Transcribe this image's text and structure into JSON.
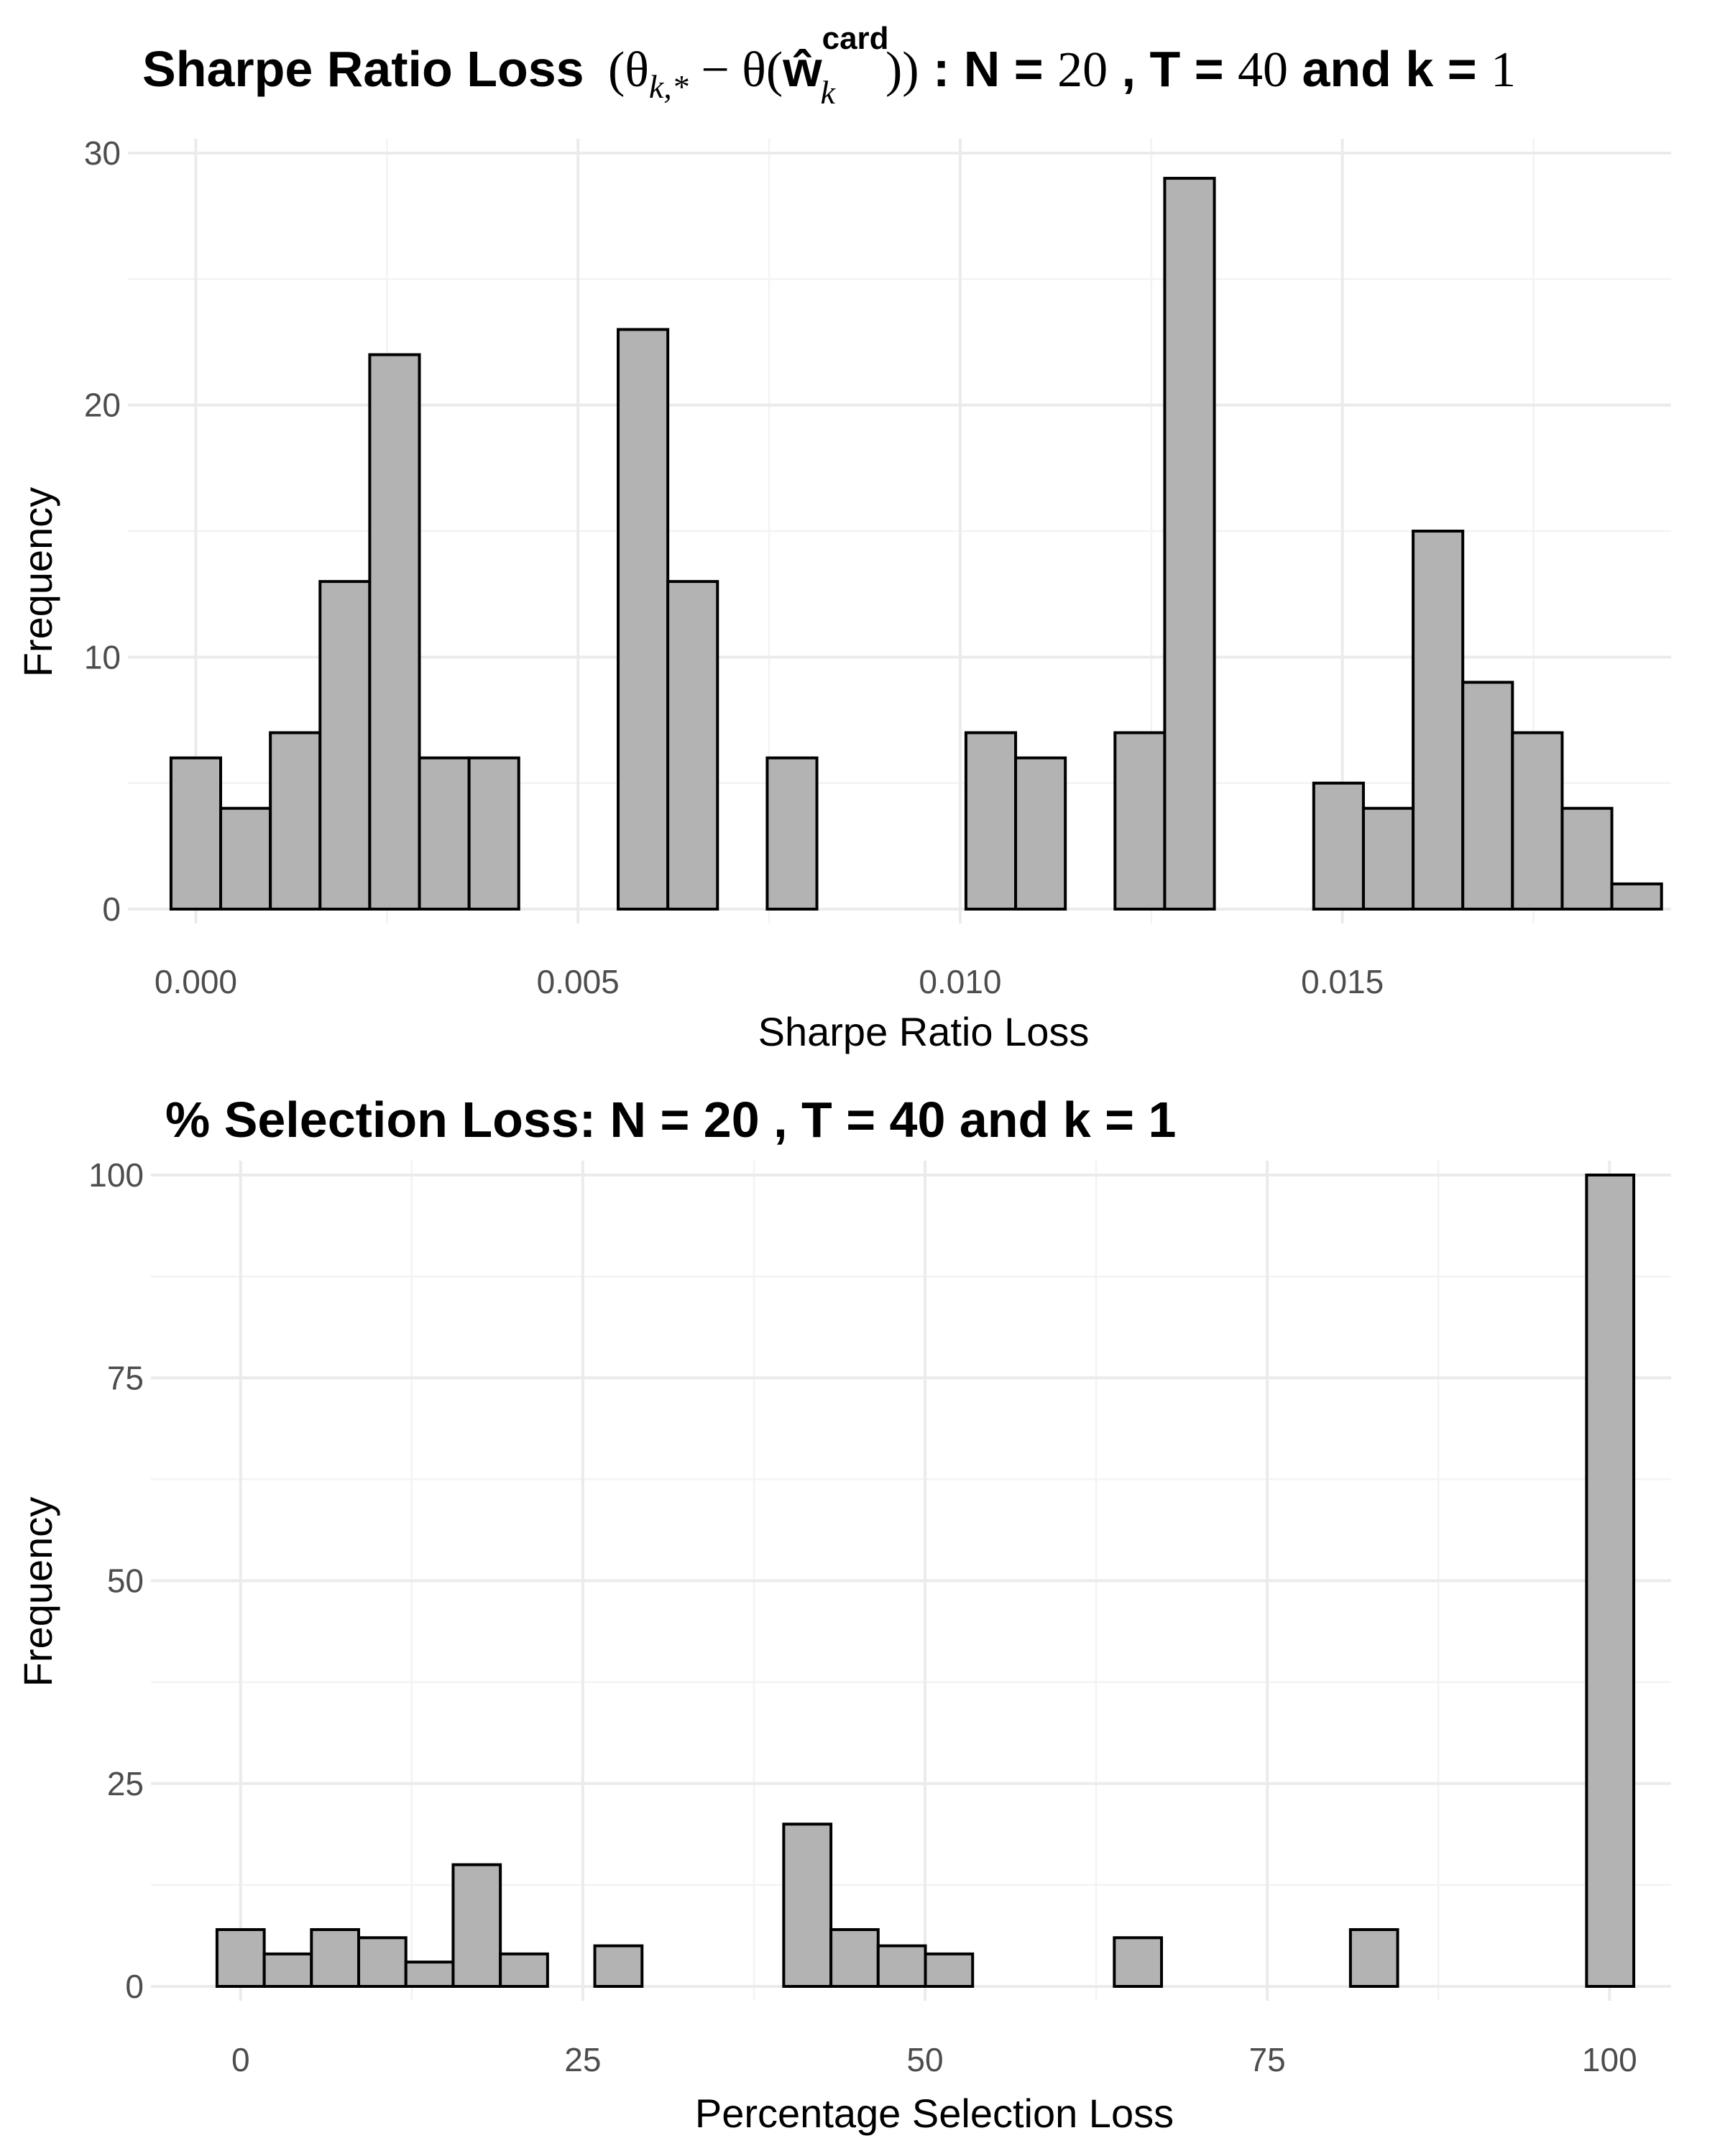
{
  "chart_data": [
    {
      "type": "bar",
      "title": {
        "prefix": "Sharpe Ratio Loss",
        "formula_open": "(θ",
        "formula_sub1": "k,*",
        "formula_mid": " − θ(",
        "formula_w": "ŵ",
        "formula_sup": "card",
        "formula_sub2": "k",
        "formula_close": "))",
        "suffix_1": " : N = ",
        "n_value": "20",
        "suffix_2": " , T = ",
        "t_value": "40",
        "suffix_3": "  and k = ",
        "k_value": "1"
      },
      "xlabel": "Sharpe Ratio Loss",
      "ylabel": "Frequency",
      "xlim": [
        -0.0007,
        0.0193
      ],
      "ylim": [
        0,
        30
      ],
      "x_ticks": [
        0.0,
        0.005,
        0.01,
        0.015
      ],
      "x_tick_labels": [
        "0.000",
        "0.005",
        "0.010",
        "0.015"
      ],
      "y_ticks": [
        0,
        10,
        20,
        30
      ],
      "y_tick_labels": [
        "0",
        "10",
        "20",
        "30"
      ],
      "bin_width": 0.00065,
      "x": [
        0.0,
        0.00065,
        0.0013,
        0.00195,
        0.0026,
        0.00325,
        0.0039,
        0.00455,
        0.0052,
        0.00585,
        0.0065,
        0.00715,
        0.0078,
        0.00845,
        0.0091,
        0.00975,
        0.0104,
        0.01105,
        0.0117,
        0.01235,
        0.013,
        0.01365,
        0.0143,
        0.01495,
        0.0156,
        0.01625,
        0.0169,
        0.01755,
        0.0182,
        0.01885
      ],
      "values": [
        6,
        4,
        7,
        13,
        22,
        6,
        6,
        0,
        0,
        23,
        13,
        0,
        6,
        0,
        0,
        0,
        7,
        6,
        0,
        7,
        29,
        0,
        0,
        5,
        4,
        15,
        9,
        7,
        4,
        1
      ],
      "grid": true
    },
    {
      "type": "bar",
      "title": "% Selection Loss: N = 20 , T = 40 and k = 1",
      "xlabel": "Percentage Selection Loss",
      "ylabel": "Frequency",
      "xlim": [
        -5.5,
        104.5
      ],
      "ylim": [
        0,
        105
      ],
      "x_ticks": [
        0,
        25,
        50,
        75,
        100
      ],
      "x_tick_labels": [
        "0",
        "25",
        "50",
        "75",
        "100"
      ],
      "y_ticks": [
        0,
        25,
        50,
        75,
        100
      ],
      "y_tick_labels": [
        "0",
        "25",
        "50",
        "75",
        "100"
      ],
      "bin_width": 3.45,
      "x": [
        0.0,
        3.45,
        6.9,
        10.35,
        13.8,
        17.25,
        20.7,
        24.15,
        27.6,
        31.05,
        34.5,
        37.95,
        41.4,
        44.85,
        48.3,
        51.75,
        55.2,
        58.65,
        62.1,
        65.55,
        69.0,
        72.45,
        75.9,
        79.35,
        82.8,
        86.25,
        89.7,
        93.15,
        96.6,
        100.05
      ],
      "values": [
        7,
        4,
        7,
        6,
        3,
        15,
        4,
        0,
        5,
        0,
        0,
        0,
        20,
        7,
        5,
        4,
        0,
        0,
        0,
        6,
        0,
        0,
        0,
        0,
        7,
        0,
        0,
        0,
        0,
        100
      ],
      "grid": true
    }
  ]
}
